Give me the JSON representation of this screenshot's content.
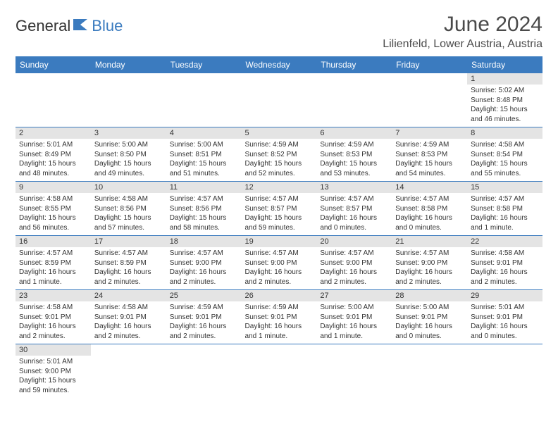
{
  "logo": {
    "text1": "General",
    "text2": "Blue"
  },
  "title": "June 2024",
  "location": "Lilienfeld, Lower Austria, Austria",
  "colors": {
    "header_bg": "#3b7bbf",
    "header_fg": "#ffffff",
    "daynum_bg": "#e4e4e4",
    "row_divider": "#3b7bbf",
    "text": "#333333",
    "title_text": "#4a4a4a",
    "page_bg": "#ffffff"
  },
  "typography": {
    "title_fontsize": 30,
    "location_fontsize": 16,
    "dayheader_fontsize": 12,
    "daynum_fontsize": 11,
    "dayinfo_fontsize": 10,
    "logo_fontsize": 22
  },
  "layout": {
    "columns": 7,
    "rows": 6,
    "first_day_column": 6
  },
  "day_headers": [
    "Sunday",
    "Monday",
    "Tuesday",
    "Wednesday",
    "Thursday",
    "Friday",
    "Saturday"
  ],
  "days": [
    {
      "n": "1",
      "sunrise": "Sunrise: 5:02 AM",
      "sunset": "Sunset: 8:48 PM",
      "daylight": "Daylight: 15 hours and 46 minutes."
    },
    {
      "n": "2",
      "sunrise": "Sunrise: 5:01 AM",
      "sunset": "Sunset: 8:49 PM",
      "daylight": "Daylight: 15 hours and 48 minutes."
    },
    {
      "n": "3",
      "sunrise": "Sunrise: 5:00 AM",
      "sunset": "Sunset: 8:50 PM",
      "daylight": "Daylight: 15 hours and 49 minutes."
    },
    {
      "n": "4",
      "sunrise": "Sunrise: 5:00 AM",
      "sunset": "Sunset: 8:51 PM",
      "daylight": "Daylight: 15 hours and 51 minutes."
    },
    {
      "n": "5",
      "sunrise": "Sunrise: 4:59 AM",
      "sunset": "Sunset: 8:52 PM",
      "daylight": "Daylight: 15 hours and 52 minutes."
    },
    {
      "n": "6",
      "sunrise": "Sunrise: 4:59 AM",
      "sunset": "Sunset: 8:53 PM",
      "daylight": "Daylight: 15 hours and 53 minutes."
    },
    {
      "n": "7",
      "sunrise": "Sunrise: 4:59 AM",
      "sunset": "Sunset: 8:53 PM",
      "daylight": "Daylight: 15 hours and 54 minutes."
    },
    {
      "n": "8",
      "sunrise": "Sunrise: 4:58 AM",
      "sunset": "Sunset: 8:54 PM",
      "daylight": "Daylight: 15 hours and 55 minutes."
    },
    {
      "n": "9",
      "sunrise": "Sunrise: 4:58 AM",
      "sunset": "Sunset: 8:55 PM",
      "daylight": "Daylight: 15 hours and 56 minutes."
    },
    {
      "n": "10",
      "sunrise": "Sunrise: 4:58 AM",
      "sunset": "Sunset: 8:56 PM",
      "daylight": "Daylight: 15 hours and 57 minutes."
    },
    {
      "n": "11",
      "sunrise": "Sunrise: 4:57 AM",
      "sunset": "Sunset: 8:56 PM",
      "daylight": "Daylight: 15 hours and 58 minutes."
    },
    {
      "n": "12",
      "sunrise": "Sunrise: 4:57 AM",
      "sunset": "Sunset: 8:57 PM",
      "daylight": "Daylight: 15 hours and 59 minutes."
    },
    {
      "n": "13",
      "sunrise": "Sunrise: 4:57 AM",
      "sunset": "Sunset: 8:57 PM",
      "daylight": "Daylight: 16 hours and 0 minutes."
    },
    {
      "n": "14",
      "sunrise": "Sunrise: 4:57 AM",
      "sunset": "Sunset: 8:58 PM",
      "daylight": "Daylight: 16 hours and 0 minutes."
    },
    {
      "n": "15",
      "sunrise": "Sunrise: 4:57 AM",
      "sunset": "Sunset: 8:58 PM",
      "daylight": "Daylight: 16 hours and 1 minute."
    },
    {
      "n": "16",
      "sunrise": "Sunrise: 4:57 AM",
      "sunset": "Sunset: 8:59 PM",
      "daylight": "Daylight: 16 hours and 1 minute."
    },
    {
      "n": "17",
      "sunrise": "Sunrise: 4:57 AM",
      "sunset": "Sunset: 8:59 PM",
      "daylight": "Daylight: 16 hours and 2 minutes."
    },
    {
      "n": "18",
      "sunrise": "Sunrise: 4:57 AM",
      "sunset": "Sunset: 9:00 PM",
      "daylight": "Daylight: 16 hours and 2 minutes."
    },
    {
      "n": "19",
      "sunrise": "Sunrise: 4:57 AM",
      "sunset": "Sunset: 9:00 PM",
      "daylight": "Daylight: 16 hours and 2 minutes."
    },
    {
      "n": "20",
      "sunrise": "Sunrise: 4:57 AM",
      "sunset": "Sunset: 9:00 PM",
      "daylight": "Daylight: 16 hours and 2 minutes."
    },
    {
      "n": "21",
      "sunrise": "Sunrise: 4:57 AM",
      "sunset": "Sunset: 9:00 PM",
      "daylight": "Daylight: 16 hours and 2 minutes."
    },
    {
      "n": "22",
      "sunrise": "Sunrise: 4:58 AM",
      "sunset": "Sunset: 9:01 PM",
      "daylight": "Daylight: 16 hours and 2 minutes."
    },
    {
      "n": "23",
      "sunrise": "Sunrise: 4:58 AM",
      "sunset": "Sunset: 9:01 PM",
      "daylight": "Daylight: 16 hours and 2 minutes."
    },
    {
      "n": "24",
      "sunrise": "Sunrise: 4:58 AM",
      "sunset": "Sunset: 9:01 PM",
      "daylight": "Daylight: 16 hours and 2 minutes."
    },
    {
      "n": "25",
      "sunrise": "Sunrise: 4:59 AM",
      "sunset": "Sunset: 9:01 PM",
      "daylight": "Daylight: 16 hours and 2 minutes."
    },
    {
      "n": "26",
      "sunrise": "Sunrise: 4:59 AM",
      "sunset": "Sunset: 9:01 PM",
      "daylight": "Daylight: 16 hours and 1 minute."
    },
    {
      "n": "27",
      "sunrise": "Sunrise: 5:00 AM",
      "sunset": "Sunset: 9:01 PM",
      "daylight": "Daylight: 16 hours and 1 minute."
    },
    {
      "n": "28",
      "sunrise": "Sunrise: 5:00 AM",
      "sunset": "Sunset: 9:01 PM",
      "daylight": "Daylight: 16 hours and 0 minutes."
    },
    {
      "n": "29",
      "sunrise": "Sunrise: 5:01 AM",
      "sunset": "Sunset: 9:01 PM",
      "daylight": "Daylight: 16 hours and 0 minutes."
    },
    {
      "n": "30",
      "sunrise": "Sunrise: 5:01 AM",
      "sunset": "Sunset: 9:00 PM",
      "daylight": "Daylight: 15 hours and 59 minutes."
    }
  ]
}
